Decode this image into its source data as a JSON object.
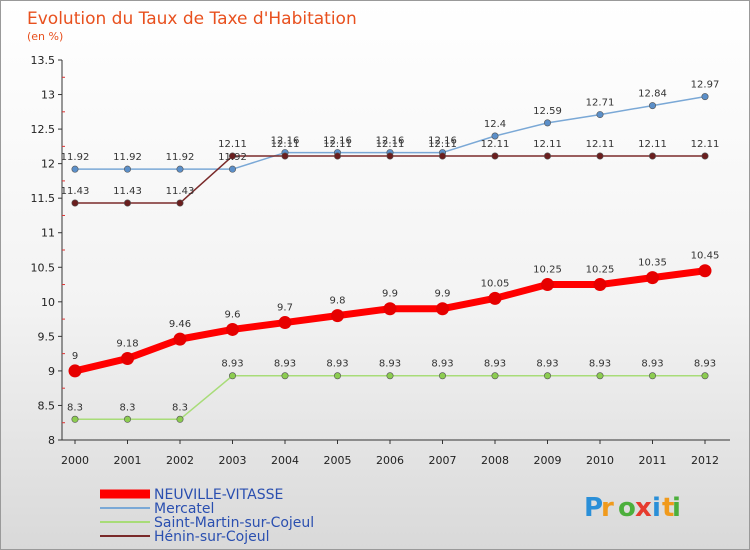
{
  "chart_data": {
    "type": "line",
    "title": "Evolution du Taux de Taxe d'Habitation",
    "subtitle": "(en %)",
    "x": [
      "2000",
      "2001",
      "2002",
      "2003",
      "2004",
      "2005",
      "2006",
      "2007",
      "2008",
      "2009",
      "2010",
      "2011",
      "2012"
    ],
    "ylim": [
      8,
      13.5
    ],
    "yticks": [
      "8",
      "8.5",
      "9",
      "9.5",
      "10",
      "10.5",
      "11",
      "11.5",
      "12",
      "12.5",
      "13",
      "13.5"
    ],
    "grid": false,
    "legend_position": "bottom-left",
    "series": [
      {
        "name": "NEUVILLE-VITASSE",
        "color": "#ff0000",
        "marker": "#e60000",
        "values": [
          9,
          9.18,
          9.46,
          9.6,
          9.7,
          9.8,
          9.9,
          9.9,
          10.05,
          10.25,
          10.25,
          10.35,
          10.45
        ]
      },
      {
        "name": "Mercatel",
        "color": "#7aa8d6",
        "marker": "#5b8fc9",
        "values": [
          11.92,
          11.92,
          11.92,
          11.92,
          12.16,
          12.16,
          12.16,
          12.16,
          12.4,
          12.59,
          12.71,
          12.84,
          12.97
        ]
      },
      {
        "name": "Saint-Martin-sur-Cojeul",
        "color": "#a8dc78",
        "marker": "#8ccc50",
        "values": [
          8.3,
          8.3,
          8.3,
          8.93,
          8.93,
          8.93,
          8.93,
          8.93,
          8.93,
          8.93,
          8.93,
          8.93,
          8.93
        ]
      },
      {
        "name": "Hénin-sur-Cojeul",
        "color": "#7a2a2a",
        "marker": "#6a1e1e",
        "values": [
          11.43,
          11.43,
          11.43,
          12.11,
          12.11,
          12.11,
          12.11,
          12.11,
          12.11,
          12.11,
          12.11,
          12.11,
          12.11
        ]
      }
    ]
  },
  "logo": {
    "letters": [
      "P",
      "r",
      "o",
      "x",
      "i",
      "t",
      "i"
    ],
    "colors": [
      "#2a8fd8",
      "#f09a1c",
      "#4caf3c",
      "#e63b2e",
      "#2a8fd8",
      "#f09a1c",
      "#4caf3c"
    ]
  }
}
